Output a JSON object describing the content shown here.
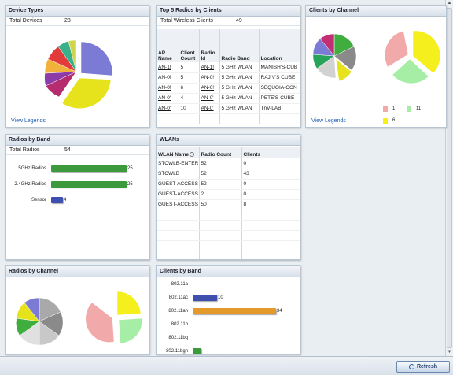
{
  "colors": {
    "accent_green": "#3a9a3a",
    "accent_blue": "#3f4fae",
    "accent_orange": "#e39a2a",
    "link": "#1f5fb5"
  },
  "device_types": {
    "title": "Device Types",
    "total_label": "Total Devices",
    "total_value": "28",
    "view_legends": "View Legends"
  },
  "top_radios": {
    "title": "Top 5 Radios by Clients",
    "total_label": "Total Wireless Clients",
    "total_value": "49",
    "headers": [
      "AP Name",
      "Client Count",
      "Radio Id",
      "Radio Band",
      "Location"
    ],
    "rows": [
      [
        "AN-1!",
        "5",
        "AN-1!",
        "5 GHz WLAN",
        "MANISH'S-CUB"
      ],
      [
        "AN-0!",
        "5",
        "AN-0!",
        "5 GHz WLAN",
        "RAJIV'S CUBE"
      ],
      [
        "AN-0!",
        "6",
        "AN-0!",
        "5 GHz WLAN",
        "SEQUOIA-CON"
      ],
      [
        "AN-0'",
        "4",
        "AN-0'",
        "5 GHz WLAN",
        "PETE'S-CUBE"
      ],
      [
        "AN-0'",
        "10",
        "AN-0'",
        "5 GHz WLAN",
        "TnV-LAB"
      ]
    ]
  },
  "clients_by_channel": {
    "title": "Clients by Channel",
    "view_legends": "View Legends",
    "legend": [
      {
        "label": "1",
        "color": "#f2a9a9"
      },
      {
        "label": "11",
        "color": "#a6eea6"
      },
      {
        "label": "6",
        "color": "#f5ef1e"
      }
    ]
  },
  "radios_by_band": {
    "title": "Radios by Band",
    "total_label": "Total Radios",
    "total_value": "54",
    "bars": [
      {
        "label": "5GHz Radios",
        "value": "25",
        "color": "#3c9a3c",
        "frac": 1.0
      },
      {
        "label": "2.4GHz Radios",
        "value": "25",
        "color": "#3c9a3c",
        "frac": 1.0
      },
      {
        "label": "Sensor",
        "value": "4",
        "color": "#3f4fae",
        "frac": 0.16
      }
    ]
  },
  "wlans": {
    "title": "WLANs",
    "headers": [
      "WLAN Name",
      "Radio Count",
      "Clients"
    ],
    "rows": [
      [
        "STCWLB-ENTER",
        "52",
        "0"
      ],
      [
        "STCWLB",
        "52",
        "43"
      ],
      [
        "GUEST-ACCESS",
        "52",
        "0"
      ],
      [
        "GUEST-ACCESS",
        "2",
        "0"
      ],
      [
        "GUEST-ACCESS",
        "50",
        "8"
      ]
    ]
  },
  "radios_by_channel": {
    "title": "Radios by Channel"
  },
  "clients_by_band": {
    "title": "Clients by Band",
    "bars": [
      {
        "label": "802.11a",
        "value": "",
        "color": "#3f4fae",
        "frac": 0
      },
      {
        "label": "802.11ac",
        "value": "10",
        "color": "#3f4fae",
        "frac": 0.29
      },
      {
        "label": "802.11an",
        "value": "34",
        "color": "#e39a2a",
        "frac": 1.0
      },
      {
        "label": "802.11b",
        "value": "",
        "color": "#3f4fae",
        "frac": 0
      },
      {
        "label": "802.11bg",
        "value": "",
        "color": "#3f4fae",
        "frac": 0
      },
      {
        "label": "802.11bgn",
        "value": "",
        "color": "#3c9a3c",
        "frac": 0.1
      }
    ]
  },
  "footer": {
    "refresh_label": "Refresh"
  }
}
